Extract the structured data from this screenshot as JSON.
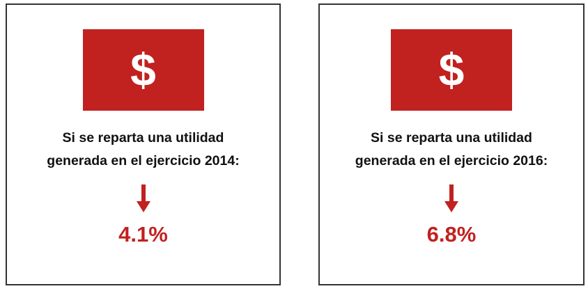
{
  "cards": [
    {
      "icon": "$",
      "lines": [
        "Si se reparta una utilidad",
        "generada en el ejercicio 2014:"
      ],
      "value": "4.1%"
    },
    {
      "icon": "$",
      "lines": [
        "Si se reparta una utilidad",
        "generada en el ejercicio 2016:"
      ],
      "value": "6.8%"
    }
  ]
}
